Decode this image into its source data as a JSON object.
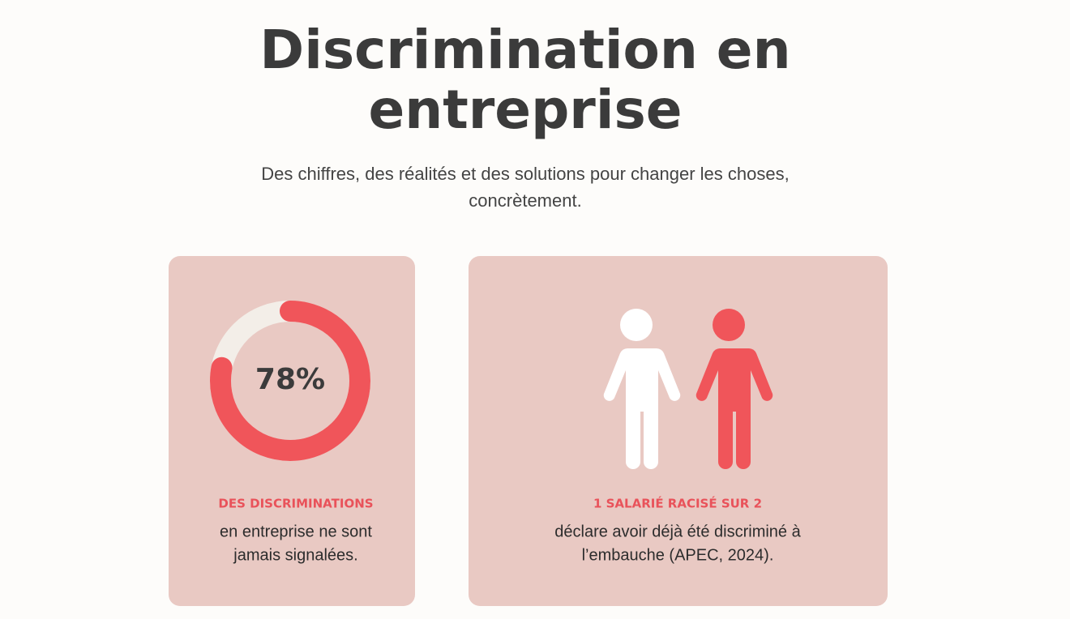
{
  "header": {
    "title_lines": [
      "Discrimination en",
      "entreprise"
    ],
    "subtitle_lines": [
      "Des chiffres, des réalités et des solutions pour changer les choses,",
      "concrètement."
    ]
  },
  "cards": [
    {
      "value": 78,
      "value_label": "78%",
      "kicker": "DES DISCRIMINATIONS",
      "body_lines": [
        "en entreprise ne sont",
        "jamais signalées."
      ]
    },
    {
      "kicker": "1 SALARIÉ RACISÉ SUR 2",
      "body_lines": [
        "déclare avoir déjà été discriminé à",
        "l’embauche (APEC, 2024)."
      ]
    }
  ]
}
